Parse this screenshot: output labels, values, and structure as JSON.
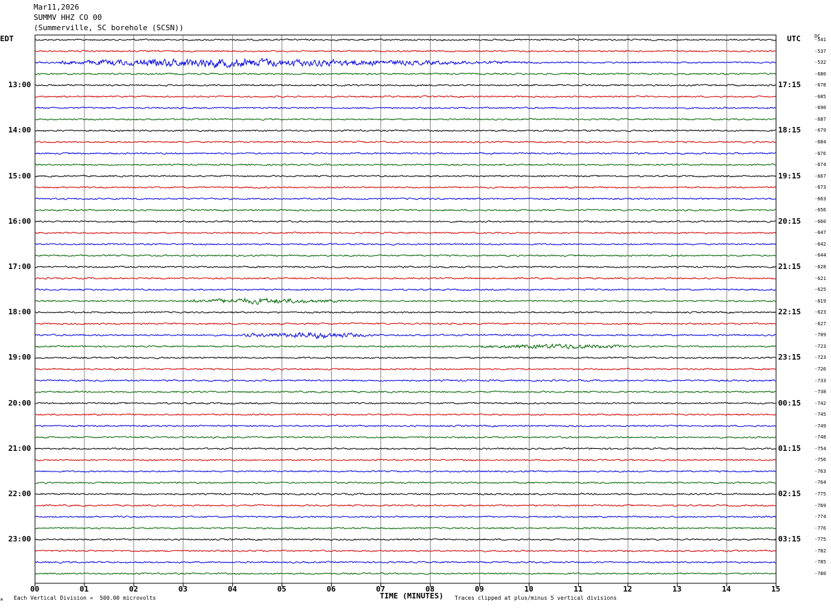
{
  "header": {
    "date": "Mar11,2026",
    "station": "SUMMV HHZ CO 00",
    "location": "(Summerville, SC borehole (SCSN))"
  },
  "labels": {
    "left_tz": "EDT",
    "right_tz": "UTC",
    "dc_header": "DC"
  },
  "footer": {
    "scale_note": "Each Vertical Division =  500.00 microvolts",
    "clip_note": "Traces clipped at plus/minus 5 vertical divisions",
    "mark": "⨯"
  },
  "colors": {
    "black": "#000000",
    "red": "#d40000",
    "blue": "#0000e0",
    "green": "#006400",
    "grid": "#000000"
  },
  "chart_data": {
    "type": "line",
    "title": "",
    "xlabel": "TIME (MINUTES)",
    "ylabel": "",
    "xlim": [
      0,
      15
    ],
    "x_ticks": [
      "00",
      "01",
      "02",
      "03",
      "04",
      "05",
      "06",
      "07",
      "08",
      "09",
      "10",
      "11",
      "12",
      "13",
      "14",
      "15"
    ],
    "rows_per_hour": 4,
    "minutes_per_row": 15,
    "left_hour_labels": [
      "13:00",
      "14:00",
      "15:00",
      "16:00",
      "17:00",
      "18:00",
      "19:00",
      "20:00",
      "21:00",
      "22:00",
      "23:00"
    ],
    "right_hour_labels": [
      "17:15",
      "18:15",
      "19:15",
      "20:15",
      "21:15",
      "22:15",
      "23:15",
      "00:15",
      "01:15",
      "02:15",
      "03:15"
    ],
    "color_cycle": [
      "black",
      "red",
      "blue",
      "green"
    ],
    "dc_offsets": [
      -541,
      -537,
      -532,
      -680,
      -678,
      -685,
      -690,
      -687,
      -679,
      -684,
      -676,
      -674,
      -667,
      -673,
      -663,
      -656,
      -660,
      -647,
      -642,
      -644,
      -628,
      -621,
      -625,
      -619,
      -623,
      -627,
      -709,
      -723,
      -723,
      -726,
      -733,
      -738,
      -742,
      -745,
      -749,
      -748,
      -754,
      -756,
      -763,
      -764,
      -775,
      -769,
      -774,
      -776,
      -775,
      -782,
      -785,
      -780
    ],
    "events": [
      {
        "row": 2,
        "start_min": 0.5,
        "end_min": 10.5,
        "peak_min": 3.5,
        "amplitude": 3.2
      },
      {
        "row": 23,
        "start_min": 3.0,
        "end_min": 6.5,
        "peak_min": 4.5,
        "amplitude": 1.8
      },
      {
        "row": 26,
        "start_min": 4.2,
        "end_min": 7.0,
        "peak_min": 5.8,
        "amplitude": 2.0
      },
      {
        "row": 27,
        "start_min": 9.0,
        "end_min": 12.3,
        "peak_min": 10.8,
        "amplitude": 1.6
      }
    ]
  }
}
